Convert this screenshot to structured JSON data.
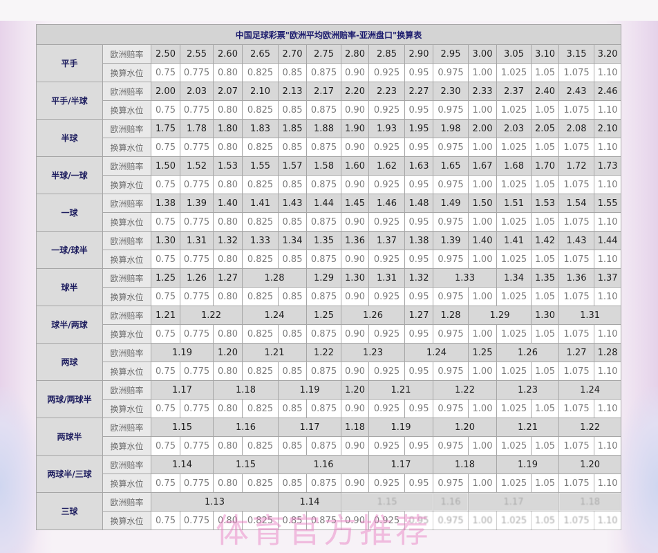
{
  "title": "中国足球彩票\"欧洲平均欧洲赔率-亚洲盘口\"换算表",
  "row_types": {
    "odds": "欧洲赔率",
    "water": "换算水位"
  },
  "water_levels": [
    "0.75",
    "0.775",
    "0.80",
    "0.825",
    "0.85",
    "0.875",
    "0.90",
    "0.925",
    "0.95",
    "0.975",
    "1.00",
    "1.025",
    "1.05",
    "1.075",
    "1.10"
  ],
  "groups": [
    {
      "label": "平手",
      "odds": [
        "2.50",
        "2.55",
        "2.60",
        "2.65",
        "2.70",
        "2.75",
        "2.80",
        "2.85",
        "2.90",
        "2.95",
        "3.00",
        "3.05",
        "3.10",
        "3.15",
        "3.20"
      ]
    },
    {
      "label": "平手/半球",
      "odds": [
        "2.00",
        "2.03",
        "2.07",
        "2.10",
        "2.13",
        "2.17",
        "2.20",
        "2.23",
        "2.27",
        "2.30",
        "2.33",
        "2.37",
        "2.40",
        "2.43",
        "2.46"
      ]
    },
    {
      "label": "半球",
      "odds": [
        "1.75",
        "1.78",
        "1.80",
        "1.83",
        "1.85",
        "1.88",
        "1.90",
        "1.93",
        "1.95",
        "1.98",
        "2.00",
        "2.03",
        "2.05",
        "2.08",
        "2.10"
      ]
    },
    {
      "label": "半球/一球",
      "odds": [
        "1.50",
        "1.52",
        "1.53",
        "1.55",
        "1.57",
        "1.58",
        "1.60",
        "1.62",
        "1.63",
        "1.65",
        "1.67",
        "1.68",
        "1.70",
        "1.72",
        "1.73"
      ]
    },
    {
      "label": "一球",
      "odds": [
        "1.38",
        "1.39",
        "1.40",
        "1.41",
        "1.43",
        "1.44",
        "1.45",
        "1.46",
        "1.48",
        "1.49",
        "1.50",
        "1.51",
        "1.53",
        "1.54",
        "1.55"
      ]
    },
    {
      "label": "一球/球半",
      "odds": [
        "1.30",
        "1.31",
        "1.32",
        "1.33",
        "1.34",
        "1.35",
        "1.36",
        "1.37",
        "1.38",
        "1.39",
        "1.40",
        "1.41",
        "1.42",
        "1.43",
        "1.44"
      ]
    },
    {
      "label": "球半",
      "odds": [
        "1.25",
        "1.26",
        "1.27",
        "1.28",
        "1.29",
        "1.30",
        "1.31",
        "1.32",
        "1.33",
        "1.34",
        "1.35",
        "1.36",
        "1.37"
      ]
    },
    {
      "label": "球半/两球",
      "odds": [
        "1.21",
        "1.22",
        "1.24",
        "1.25",
        "1.26",
        "1.27",
        "1.28",
        "1.29",
        "1.30",
        "1.31"
      ]
    },
    {
      "label": "两球",
      "odds": [
        "1.19",
        "1.20",
        "1.21",
        "1.22",
        "1.23",
        "1.24",
        "1.25",
        "1.26",
        "1.27",
        "1.28"
      ]
    },
    {
      "label": "两球/两球半",
      "odds": [
        "1.17",
        "1.18",
        "1.19",
        "1.20",
        "1.21",
        "1.22",
        "1.23",
        "1.24"
      ]
    },
    {
      "label": "两球半",
      "odds": [
        "1.15",
        "1.16",
        "1.17",
        "1.18",
        "1.19",
        "1.20",
        "1.21",
        "1.22"
      ]
    },
    {
      "label": "两球半/三球",
      "odds": [
        "1.14",
        "1.15",
        "1.16",
        "1.17",
        "1.18",
        "1.19",
        "1.20"
      ]
    },
    {
      "label": "三球",
      "odds": [
        "1.13",
        "1.14",
        "1.15",
        "1.16",
        "1.17",
        "1.18"
      ]
    }
  ],
  "watermark": "体育官方推荐"
}
